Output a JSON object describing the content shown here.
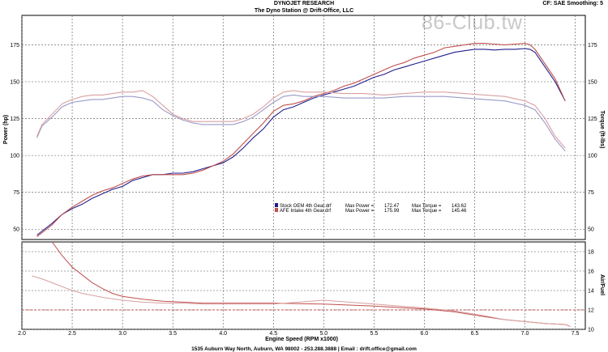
{
  "header": {
    "title_line1": "DYNOJET RESEARCH",
    "title_line2": "The Dyno Station @ Drift-Office, LLC",
    "settings": "CF: SAE  Smoothing: 5",
    "watermark": "86-Club.tw"
  },
  "footer": {
    "text": "1535 Auburn Way North, Auburn, WA 98002 - 253.288.3888 | Email : drift.office@gmail.com"
  },
  "colors": {
    "stock": "#1f1f8c",
    "afe": "#c0504d",
    "afe_light": "#d8a0a0",
    "stock_light": "#9a9ac8",
    "grid": "#555555"
  },
  "chart_data": [
    {
      "type": "line",
      "panel": "upper",
      "xlabel": "Engine Speed (RPM x1000)",
      "ylabel_left": "Power (hp)",
      "ylabel_right": "Torque (ft-lbs)",
      "xlim": [
        2.0,
        7.6
      ],
      "ylim": [
        43,
        195
      ],
      "x_ticks": [
        "2.0",
        "2.5",
        "3.0",
        "3.5",
        "4.0",
        "4.5",
        "5.0",
        "5.5",
        "6.0",
        "6.5",
        "7.0",
        "7.5"
      ],
      "y_ticks": [
        "50",
        "75",
        "100",
        "125",
        "150",
        "175"
      ],
      "legend": [
        {
          "label": "Stock OEM 4th Gear.drf",
          "max_power_label": "Max Power =",
          "max_power": "172.47",
          "max_torque_label": "Max Torque =",
          "max_torque": "143.62"
        },
        {
          "label": "AFE Intake 4th Gear.drf",
          "max_power_label": "Max Power =",
          "max_power": "175.99",
          "max_torque_label": "Max Torque =",
          "max_torque": "145.46"
        }
      ],
      "series": [
        {
          "key": "stock_power",
          "color": "#1f1f8c",
          "x": [
            2.15,
            2.3,
            2.4,
            2.5,
            2.6,
            2.7,
            2.8,
            2.9,
            3.0,
            3.1,
            3.2,
            3.3,
            3.4,
            3.5,
            3.6,
            3.7,
            3.8,
            3.9,
            4.0,
            4.1,
            4.2,
            4.3,
            4.4,
            4.5,
            4.6,
            4.7,
            4.8,
            4.9,
            5.0,
            5.1,
            5.2,
            5.3,
            5.4,
            5.5,
            5.6,
            5.7,
            5.8,
            5.9,
            6.0,
            6.1,
            6.2,
            6.3,
            6.4,
            6.5,
            6.6,
            6.7,
            6.8,
            6.9,
            7.0,
            7.05,
            7.1,
            7.2,
            7.3,
            7.4
          ],
          "y": [
            46,
            54,
            60,
            64,
            67,
            71,
            74,
            77,
            79,
            83,
            85,
            87,
            87,
            88,
            88,
            89,
            91,
            93,
            95,
            99,
            105,
            112,
            118,
            126,
            131,
            133,
            136,
            139,
            141,
            143,
            145,
            147,
            150,
            153,
            155,
            158,
            160,
            162,
            164,
            166,
            168,
            170,
            171,
            172,
            172,
            171.5,
            172,
            172,
            172.5,
            172,
            170,
            160,
            150,
            137
          ]
        },
        {
          "key": "afe_power",
          "color": "#c0504d",
          "x": [
            2.15,
            2.3,
            2.4,
            2.5,
            2.6,
            2.7,
            2.8,
            2.9,
            3.0,
            3.1,
            3.2,
            3.3,
            3.4,
            3.5,
            3.6,
            3.7,
            3.8,
            3.9,
            4.0,
            4.1,
            4.2,
            4.3,
            4.4,
            4.5,
            4.6,
            4.7,
            4.8,
            4.9,
            5.0,
            5.1,
            5.2,
            5.3,
            5.4,
            5.5,
            5.6,
            5.7,
            5.8,
            5.9,
            6.0,
            6.1,
            6.2,
            6.3,
            6.4,
            6.5,
            6.6,
            6.7,
            6.8,
            6.9,
            7.0,
            7.05,
            7.1,
            7.2,
            7.3,
            7.4
          ],
          "y": [
            45,
            53,
            60,
            65,
            69,
            73,
            76,
            78,
            81,
            84,
            86,
            87,
            87,
            87,
            87,
            88,
            90,
            93,
            96,
            101,
            108,
            115,
            122,
            130,
            134,
            135,
            137,
            140,
            142,
            144,
            147,
            149,
            152,
            155,
            158,
            161,
            163,
            166,
            168,
            170,
            173,
            174,
            175,
            176,
            176,
            175.5,
            175,
            175.5,
            176,
            175,
            172,
            162,
            152,
            137
          ]
        },
        {
          "key": "stock_torque",
          "color": "#9a9ac8",
          "x": [
            2.15,
            2.2,
            2.3,
            2.4,
            2.5,
            2.6,
            2.7,
            2.8,
            2.9,
            3.0,
            3.1,
            3.2,
            3.3,
            3.4,
            3.5,
            3.6,
            3.7,
            3.8,
            3.9,
            4.0,
            4.1,
            4.2,
            4.3,
            4.4,
            4.5,
            4.6,
            4.7,
            4.8,
            4.9,
            5.0,
            5.2,
            5.4,
            5.6,
            5.8,
            6.0,
            6.2,
            6.4,
            6.6,
            6.8,
            7.0,
            7.1,
            7.2,
            7.3,
            7.4
          ],
          "y": [
            112,
            120,
            126,
            133,
            136,
            137,
            138,
            138,
            139,
            140,
            140,
            139,
            137,
            131,
            127,
            124,
            122,
            121,
            121,
            121,
            121,
            123,
            126,
            131,
            136,
            140,
            141,
            140,
            140,
            140,
            139,
            139,
            139,
            140,
            140,
            140,
            139,
            138,
            137,
            134,
            131,
            122,
            111,
            103
          ]
        },
        {
          "key": "afe_torque",
          "color": "#d8a0a0",
          "x": [
            2.15,
            2.2,
            2.3,
            2.4,
            2.5,
            2.6,
            2.7,
            2.8,
            2.9,
            3.0,
            3.1,
            3.2,
            3.3,
            3.4,
            3.5,
            3.6,
            3.7,
            3.8,
            3.9,
            4.0,
            4.1,
            4.2,
            4.3,
            4.4,
            4.5,
            4.6,
            4.7,
            4.8,
            4.9,
            5.0,
            5.2,
            5.4,
            5.6,
            5.8,
            6.0,
            6.2,
            6.4,
            6.6,
            6.8,
            7.0,
            7.1,
            7.2,
            7.3,
            7.4
          ],
          "y": [
            113,
            121,
            128,
            135,
            138,
            140,
            141,
            141,
            142,
            143,
            143,
            144,
            140,
            134,
            128,
            125,
            123,
            123,
            123,
            123,
            123,
            125,
            128,
            133,
            139,
            143,
            144,
            143,
            143,
            143,
            142,
            142,
            141,
            142,
            143,
            143,
            142,
            141,
            140,
            137,
            134,
            125,
            113,
            105
          ]
        }
      ]
    },
    {
      "type": "line",
      "panel": "lower",
      "ylabel_right": "Air/Fuel",
      "xlim": [
        2.0,
        7.6
      ],
      "ylim": [
        10,
        19
      ],
      "y_ticks": [
        "10",
        "12",
        "14",
        "16",
        "18"
      ],
      "series": [
        {
          "key": "stock_afr",
          "color": "#c0504d",
          "x": [
            2.3,
            2.4,
            2.5,
            2.6,
            2.7,
            2.8,
            2.9,
            3.0,
            3.2,
            3.4,
            3.6,
            3.8,
            4.0,
            4.5,
            5.0,
            5.5,
            6.0,
            6.3,
            6.6,
            6.8,
            7.0,
            7.2,
            7.4,
            7.45
          ],
          "y": [
            19,
            17.6,
            16.4,
            15.6,
            14.8,
            14.2,
            13.7,
            13.4,
            13.1,
            12.9,
            12.8,
            12.7,
            12.7,
            12.7,
            12.6,
            12.4,
            12.1,
            11.8,
            11.3,
            11.0,
            10.8,
            10.6,
            10.5,
            10.3
          ]
        },
        {
          "key": "afe_afr",
          "color": "#d8a0a0",
          "x": [
            2.1,
            2.2,
            2.3,
            2.4,
            2.5,
            2.6,
            2.8,
            3.0,
            3.2,
            3.4,
            3.6,
            3.8,
            4.0,
            4.5,
            5.0,
            5.5,
            6.0,
            6.3,
            6.6,
            6.8,
            7.0,
            7.2,
            7.4,
            7.45
          ],
          "y": [
            15.5,
            15.2,
            14.8,
            14.4,
            14.0,
            13.7,
            13.3,
            13.0,
            12.8,
            12.7,
            12.7,
            12.6,
            12.6,
            12.6,
            13.0,
            12.6,
            12.2,
            11.9,
            11.4,
            11.0,
            10.8,
            10.6,
            10.5,
            10.3
          ]
        }
      ],
      "reference_line": {
        "y": 12.0,
        "color": "#c0504d"
      }
    }
  ]
}
